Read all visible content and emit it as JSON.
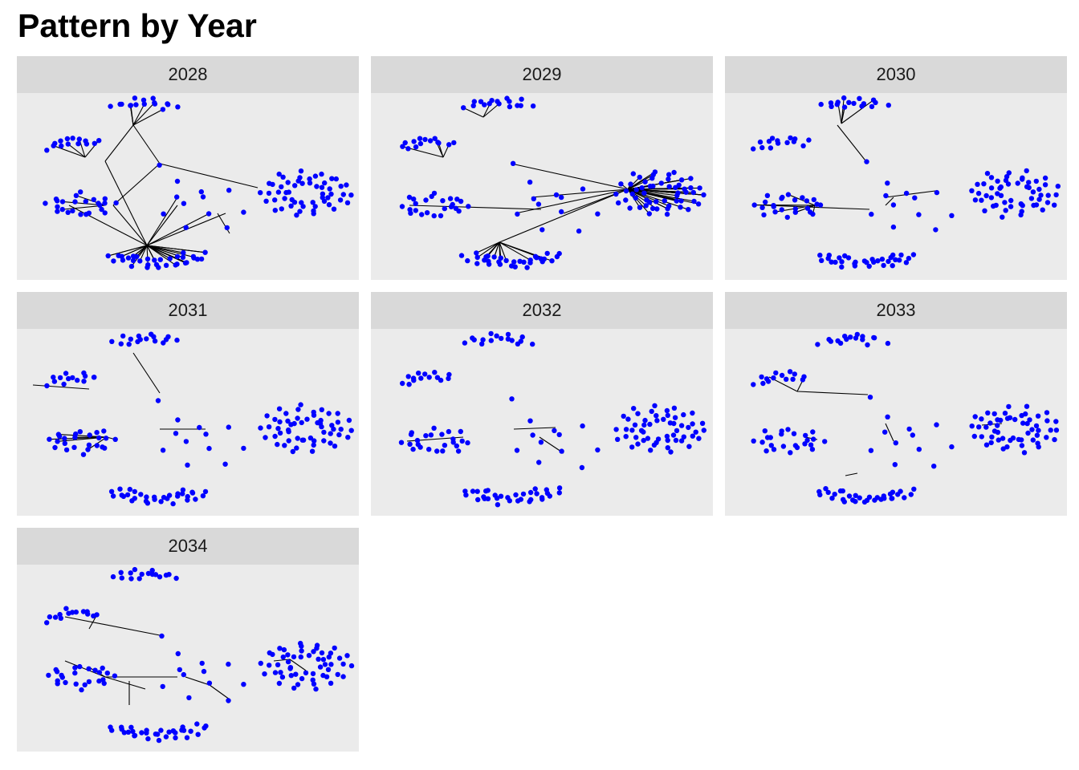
{
  "title": "Pattern by Year",
  "colors": {
    "node": "#0000ff",
    "edge": "#000000",
    "panel_bg": "#ebebeb",
    "strip_bg": "#d9d9d9"
  },
  "diagram": {
    "type": "small-multiples network graph",
    "node_shape": "circle",
    "panels": [
      {
        "label": "2028"
      },
      {
        "label": "2029"
      },
      {
        "label": "2030"
      },
      {
        "label": "2031"
      },
      {
        "label": "2032"
      },
      {
        "label": "2033"
      },
      {
        "label": "2034"
      }
    ]
  }
}
